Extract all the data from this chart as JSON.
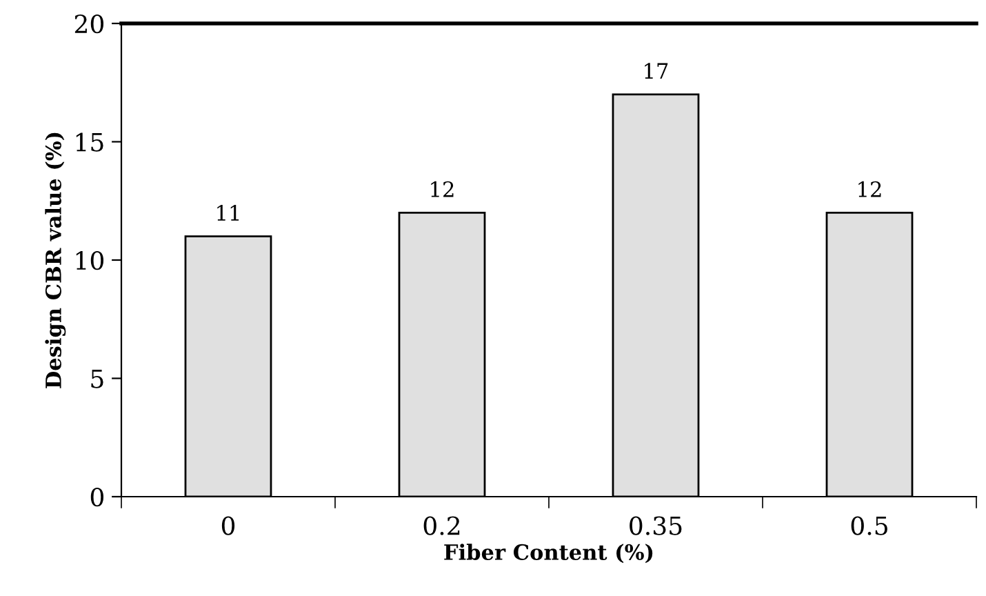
{
  "chart_data": {
    "type": "bar",
    "xlabel": "Fiber Content (%)",
    "ylabel": "Design CBR value (%)",
    "categories": [
      "0",
      "0.2",
      "0.35",
      "0.5"
    ],
    "values": [
      11,
      12,
      17,
      12
    ],
    "color": "#e0e0e0",
    "ylim": [
      0,
      20
    ],
    "yticks": [
      0,
      5,
      10,
      15,
      20
    ],
    "grid": false,
    "data_labels": true
  }
}
